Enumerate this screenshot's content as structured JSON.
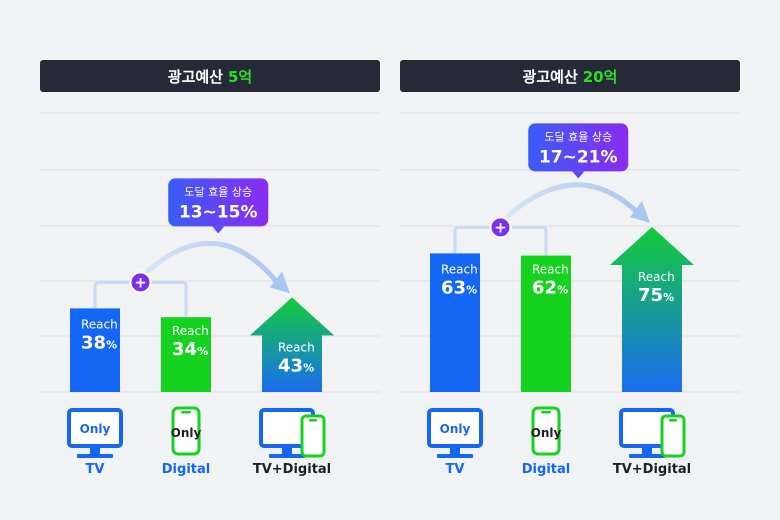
{
  "chart_data": [
    {
      "type": "bar",
      "title_prefix": "광고예산",
      "title_highlight": "5억",
      "metric_label": "Reach",
      "unit": "%",
      "categories": [
        "TV",
        "Digital",
        "TV+Digital"
      ],
      "values": [
        38,
        34,
        43
      ],
      "icon_text": [
        "Only",
        "Only",
        ""
      ],
      "plus_symbol": "+",
      "callout_label": "도달 효율 상승",
      "callout_value": "13~15%",
      "ylim": [
        0,
        100
      ],
      "grid": true
    },
    {
      "type": "bar",
      "title_prefix": "광고예산",
      "title_highlight": "20억",
      "metric_label": "Reach",
      "unit": "%",
      "categories": [
        "TV",
        "Digital",
        "TV+Digital"
      ],
      "values": [
        63,
        62,
        75
      ],
      "icon_text": [
        "Only",
        "Only",
        ""
      ],
      "plus_symbol": "+",
      "callout_label": "도달 효율 상승",
      "callout_value": "17~21%",
      "ylim": [
        0,
        100
      ],
      "grid": true
    }
  ],
  "colors": {
    "tv": "#1466f5",
    "digital": "#15d21f",
    "combo_top": "#14cc3a",
    "combo_bottom": "#1a6cf0",
    "callout_left": "#3a5cf7",
    "callout_right": "#8a2cf0",
    "connector": "#c9daf3",
    "header_bg": "#262a36",
    "highlight": "#27e026"
  },
  "icons": [
    "tv-monitor-icon",
    "smartphone-icon",
    "monitor-and-phone-icon"
  ]
}
